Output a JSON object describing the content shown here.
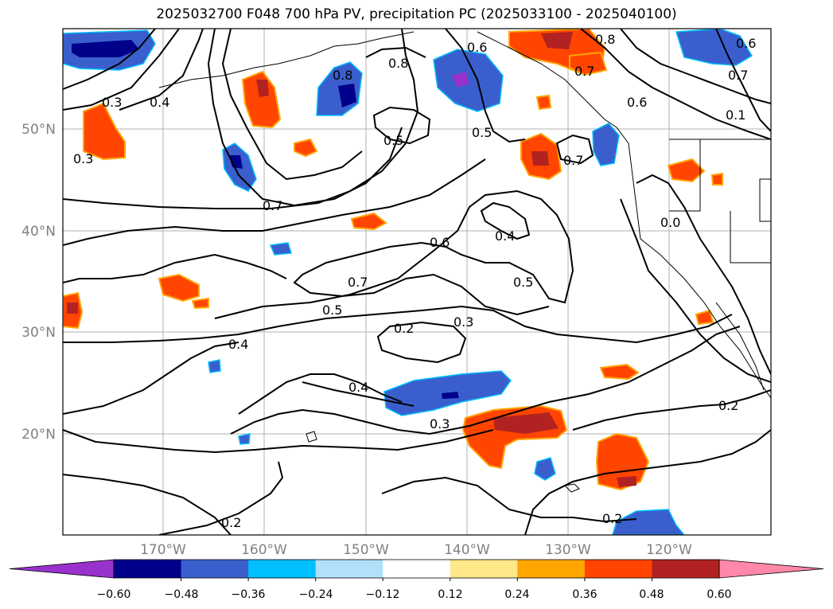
{
  "title": "2025032700 F048 700 hPa PV, precipitation PC (2025033100 - 2025040100)",
  "lat_labels": [
    "50°N",
    "40°N",
    "30°N",
    "20°N"
  ],
  "lon_labels": [
    "170°W",
    "160°W",
    "150°W",
    "140°W",
    "130°W",
    "120°W"
  ],
  "contour_labels": [
    "0.3",
    "0.4",
    "0.3",
    "0.8",
    "0.8",
    "0.6",
    "0.8",
    "0.7",
    "0.6",
    "0.5",
    "0.5",
    "0.7",
    "0.7",
    "0.4",
    "0.6",
    "0.5",
    "0.7",
    "0.5",
    "0.4",
    "0.2",
    "0.3",
    "0.4",
    "0.3",
    "0.2",
    "0.2",
    "0.2",
    "0.7",
    "0.1",
    "0.0",
    "0.6"
  ],
  "colorbar": {
    "ticks": [
      "−0.60",
      "−0.48",
      "−0.36",
      "−0.24",
      "−0.12",
      "0.12",
      "0.24",
      "0.36",
      "0.48",
      "0.60"
    ],
    "colors": [
      "#9932cc",
      "#00008b",
      "#3a5fcd",
      "#00bfff",
      "#b0e0fa",
      "#ffffff",
      "#ffe88a",
      "#ffa500",
      "#ff4500",
      "#b22222",
      "#ff88aa"
    ]
  }
}
